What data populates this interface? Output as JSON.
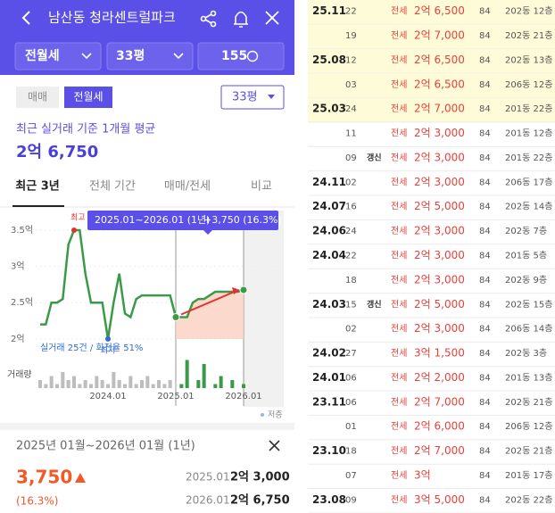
{
  "header": {
    "title": "남산동 청라센트럴파크",
    "filters": [
      "전월세",
      "33평",
      "155"
    ]
  },
  "trade_tabs": [
    "매매",
    "전월세"
  ],
  "size_select": "33평",
  "average": {
    "label": "최근 실거래 기준 1개월 평균",
    "value": "2억 6,750"
  },
  "period_tabs": [
    "최근 3년",
    "전체 기간",
    "매매/전세",
    "비교"
  ],
  "chart_data": {
    "type": "line",
    "tooltip": "2025.01~2026.01 (1년)",
    "tooltip_change": "+3,750 (16.3%)",
    "max_label": "최고",
    "min_label": "최저",
    "summary": "실거래 25건 / 회전율 51%",
    "volume_label": "거래량",
    "legend": "저층",
    "categories": [
      null,
      null,
      null,
      null,
      null,
      null,
      null,
      null,
      null,
      null,
      null,
      null,
      "2024.01",
      null,
      null,
      null,
      null,
      null,
      null,
      null,
      null,
      null,
      null,
      null,
      "2025.01",
      null,
      null,
      null,
      null,
      null,
      null,
      null,
      null,
      null,
      null,
      null,
      "2026.01"
    ],
    "series": [
      {
        "color": "#3a9a48",
        "values": [
          2.2,
          2.2,
          2.5,
          2.5,
          2.55,
          3.3,
          3.5,
          3.5,
          2.9,
          2.5,
          2.5,
          2.5,
          2.0,
          2.5,
          2.9,
          2.35,
          2.3,
          2.55,
          2.6,
          2.6,
          2.6,
          2.6,
          2.6,
          2.6,
          2.3,
          2.3,
          2.3,
          2.5,
          2.55,
          2.55,
          2.6,
          2.65,
          2.65,
          2.65,
          2.65,
          2.65,
          2.675
        ]
      }
    ],
    "volume": {
      "values": [
        2,
        1,
        3,
        1,
        4,
        2,
        3,
        1,
        2,
        1,
        3,
        2,
        1,
        4,
        2,
        1,
        3,
        1,
        2,
        3,
        1,
        2,
        1,
        2,
        0,
        1,
        7,
        0,
        2,
        6,
        0,
        1,
        3,
        0,
        2,
        0,
        1
      ],
      "color": "#bdbdbd",
      "recent_color": "#3a9a48"
    },
    "ylim": [
      1.9,
      3.7
    ],
    "yticks": [
      {
        "value": 2,
        "label": "2억"
      },
      {
        "value": 2.5,
        "label": "2.5억"
      },
      {
        "value": 3,
        "label": "3억"
      },
      {
        "value": 3.5,
        "label": "3.5억"
      }
    ]
  },
  "compare": {
    "period": "2025년 01월~2026년 01월 (1년)",
    "change": "3,750",
    "change_pct": "(16.3%)",
    "rows": [
      [
        "2025.01",
        "2억 3,000"
      ],
      [
        "2026.01",
        "2억 6,750"
      ]
    ]
  },
  "transactions": {
    "highlighted_rows": [
      0,
      1,
      2,
      3,
      4
    ],
    "rows": [
      [
        "25.11",
        "22",
        null,
        "전세",
        "2억 6,500",
        "84",
        "202동 12층"
      ],
      [
        null,
        "19",
        null,
        "전세",
        "2억 7,000",
        "84",
        "202동 21층"
      ],
      [
        "25.08",
        "12",
        null,
        "전세",
        "2억 6,500",
        "84",
        "202동 13층"
      ],
      [
        null,
        "03",
        null,
        "전세",
        "2억 6,500",
        "84",
        "206동 12층"
      ],
      [
        "25.03",
        "24",
        null,
        "전세",
        "2억 7,000",
        "84",
        "201동 22층"
      ],
      [
        null,
        "11",
        null,
        "전세",
        "2억 3,000",
        "84",
        "201동 12층"
      ],
      [
        null,
        "09",
        "갱신",
        "전세",
        "2억 3,000",
        "84",
        "201동 22층"
      ],
      [
        "24.11",
        "02",
        null,
        "전세",
        "2억 3,000",
        "84",
        "206동 17층"
      ],
      [
        "24.07",
        "16",
        null,
        "전세",
        "2억 5,000",
        "84",
        "202동 14층"
      ],
      [
        "24.06",
        "24",
        null,
        "전세",
        "2억 3,000",
        "84",
        "202동 7층"
      ],
      [
        "24.04",
        "22",
        null,
        "전세",
        "2억 3,000",
        "84",
        "201동 5층"
      ],
      [
        null,
        "18",
        null,
        "전세",
        "2억 3,000",
        "84",
        "202동 9층"
      ],
      [
        "24.03",
        "15",
        "갱신",
        "전세",
        "2억 5,000",
        "84",
        "202동 15층"
      ],
      [
        null,
        "02",
        null,
        "전세",
        "2억 3,000",
        "84",
        "206동 14층"
      ],
      [
        "24.02",
        "27",
        null,
        "전세",
        "3억 1,500",
        "84",
        "202동 3층"
      ],
      [
        "24.01",
        "06",
        null,
        "전세",
        "2억 2,000",
        "84",
        "201동 13층"
      ],
      [
        "23.11",
        "06",
        null,
        "전세",
        "2억 7,000",
        "84",
        "202동 21층"
      ],
      [
        null,
        "01",
        null,
        "전세",
        "2억 6,000",
        "84",
        "206동 12층"
      ],
      [
        "23.10",
        "18",
        null,
        "전세",
        "2억 7,000",
        "84",
        "202동 21층"
      ],
      [
        null,
        "07",
        null,
        "전세",
        "3억",
        "84",
        "201동 17층"
      ],
      [
        "23.08",
        "09",
        null,
        "전세",
        "3억 5,000",
        "84",
        "202동 22층"
      ]
    ]
  }
}
